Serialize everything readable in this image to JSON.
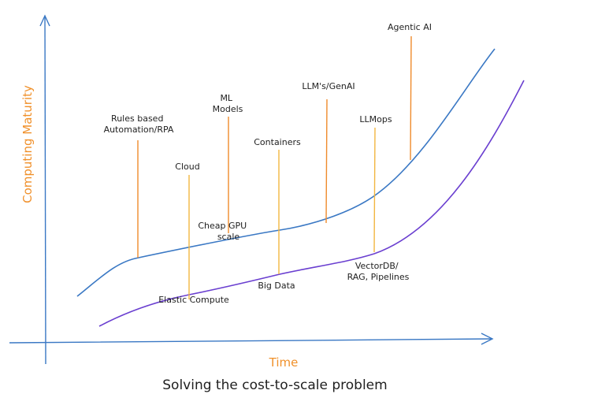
{
  "diagram": {
    "y_axis_title": "Computing Maturity",
    "x_axis_title": "Time",
    "caption": "Solving the cost-to-scale problem",
    "colors": {
      "axis": "#3a78c4",
      "upper_curve": "#3a78c4",
      "lower_curve": "#6a3fd0",
      "marker_orange": "#ef8b2c",
      "marker_yellow": "#f2b640",
      "axis_title": "#f0902a"
    },
    "upper_curve_markers": [
      {
        "lines": [
          "Rules based",
          "Automation/RPA"
        ]
      },
      {
        "lines": [
          "ML",
          "Models"
        ]
      },
      {
        "lines": [
          "LLM's/GenAI"
        ]
      },
      {
        "lines": [
          "Agentic AI"
        ]
      }
    ],
    "lower_curve_markers": [
      {
        "lines": [
          "Cloud"
        ]
      },
      {
        "lines": [
          "Containers"
        ]
      },
      {
        "lines": [
          "LLMops"
        ]
      }
    ],
    "curve_labels": [
      {
        "lines": [
          "Cheap GPU",
          "scale"
        ]
      },
      {
        "lines": [
          "Elastic Compute"
        ]
      },
      {
        "lines": [
          "Big Data"
        ]
      },
      {
        "lines": [
          "VectorDB/",
          "RAG, Pipelines"
        ]
      }
    ]
  }
}
